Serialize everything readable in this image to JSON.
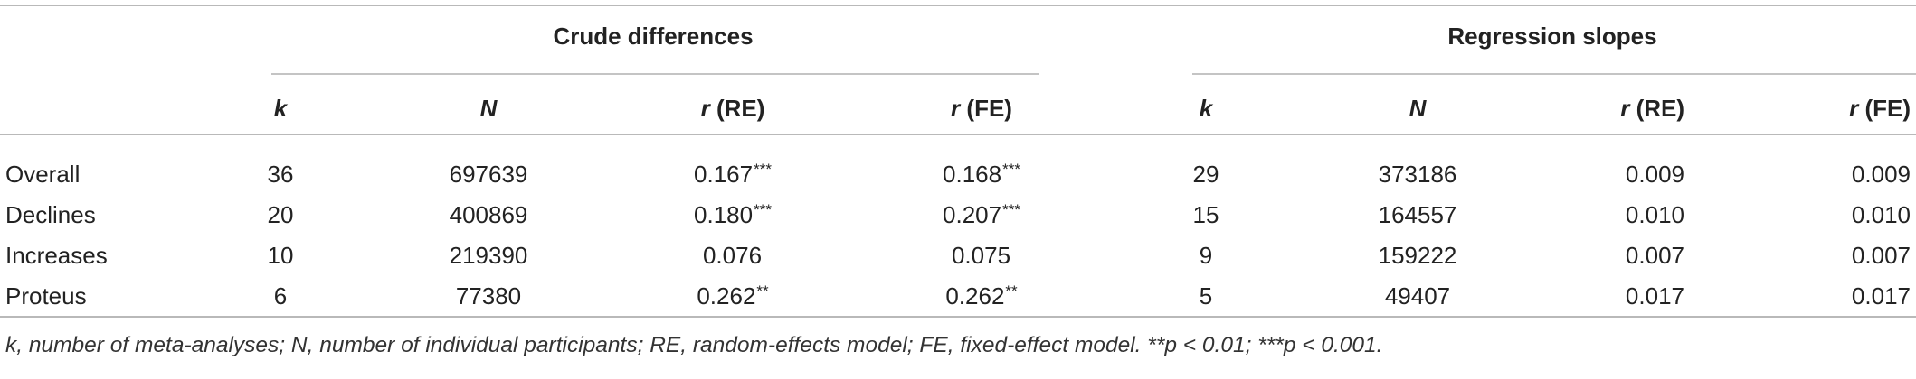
{
  "groups": {
    "crude": "Crude differences",
    "regression": "Regression slopes"
  },
  "columns": {
    "k": "k",
    "n": "N",
    "r_prefix": "r",
    "re": "(RE)",
    "fe": "(FE)"
  },
  "rows": [
    {
      "label": "Overall",
      "k1": "36",
      "n1": "697639",
      "re1": "0.167",
      "re1_sig": "***",
      "fe1": "0.168",
      "fe1_sig": "***",
      "k2": "29",
      "n2": "373186",
      "re2": "0.009",
      "fe2": "0.009"
    },
    {
      "label": "Declines",
      "k1": "20",
      "n1": "400869",
      "re1": "0.180",
      "re1_sig": "***",
      "fe1": "0.207",
      "fe1_sig": "***",
      "k2": "15",
      "n2": "164557",
      "re2": "0.010",
      "fe2": "0.010"
    },
    {
      "label": "Increases",
      "k1": "10",
      "n1": "219390",
      "re1": "0.076",
      "re1_sig": "",
      "fe1": "0.075",
      "fe1_sig": "",
      "k2": "9",
      "n2": "159222",
      "re2": "0.007",
      "fe2": "0.007"
    },
    {
      "label": "Proteus",
      "k1": "6",
      "n1": "77380",
      "re1": "0.262",
      "re1_sig": "**",
      "fe1": "0.262",
      "fe1_sig": "**",
      "k2": "5",
      "n2": "49407",
      "re2": "0.017",
      "fe2": "0.017"
    }
  ],
  "footnote": "k, number of meta-analyses; N, number of individual participants; RE, random-effects model; FE, fixed-effect model. **p < 0.01; ***p < 0.001."
}
